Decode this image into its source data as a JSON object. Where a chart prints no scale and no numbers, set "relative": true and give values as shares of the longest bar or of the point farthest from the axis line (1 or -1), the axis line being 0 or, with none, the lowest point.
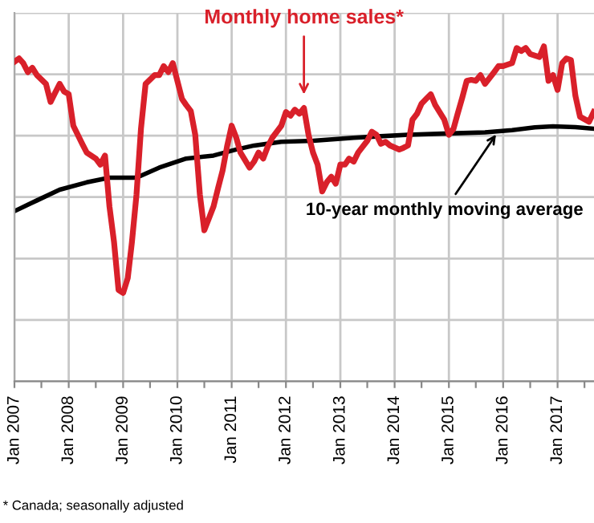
{
  "chart_data": {
    "type": "line",
    "relative": true,
    "grid": true,
    "legend": false,
    "line_style": "solid",
    "marker": "none",
    "xlim": [
      "2007-01",
      "2017-09-03"
    ],
    "xticks": [
      {
        "value": "2007-01",
        "label": "Jan 2007"
      },
      {
        "value": "2007-07",
        "label": null
      },
      {
        "value": "2008-01",
        "label": "Jan 2008"
      },
      {
        "value": "2008-07",
        "label": null
      },
      {
        "value": "2009-01",
        "label": "Jan 2009"
      },
      {
        "value": "2009-07",
        "label": null
      },
      {
        "value": "2010-01",
        "label": "Jan 2010"
      },
      {
        "value": "2010-07",
        "label": null
      },
      {
        "value": "2011-01",
        "label": "Jan 2011"
      },
      {
        "value": "2011-07",
        "label": null
      },
      {
        "value": "2012-01",
        "label": "Jan 2012"
      },
      {
        "value": "2012-07",
        "label": null
      },
      {
        "value": "2013-01",
        "label": "Jan 2013"
      },
      {
        "value": "2013-07",
        "label": null
      },
      {
        "value": "2014-01",
        "label": "Jan 2014"
      },
      {
        "value": "2014-07",
        "label": null
      },
      {
        "value": "2015-01",
        "label": "Jan 2015"
      },
      {
        "value": "2015-07",
        "label": null
      },
      {
        "value": "2016-01",
        "label": "Jan 2016"
      },
      {
        "value": "2016-07",
        "label": null
      },
      {
        "value": "2017-01",
        "label": "Jan 2017"
      },
      {
        "value": "2017-07",
        "label": null
      }
    ],
    "series": [
      {
        "color": "#d9202a",
        "x": [
          "2007-01",
          "2007-02",
          "2007-03",
          "2007-04",
          "2007-05",
          "2007-06",
          "2007-08",
          "2007-09",
          "2007-10",
          "2007-11",
          "2007-12",
          "2008-01",
          "2008-02",
          "2008-04",
          "2008-05",
          "2008-07",
          "2008-08",
          "2008-09",
          "2008-10",
          "2008-11",
          "2008-12",
          "2009-01",
          "2009-02",
          "2009-03",
          "2009-04",
          "2009-05",
          "2009-06",
          "2009-08",
          "2009-09",
          "2009-10",
          "2009-11",
          "2009-12",
          "2010-02",
          "2010-03",
          "2010-04",
          "2010-05",
          "2010-06",
          "2010-07",
          "2010-09",
          "2010-10",
          "2010-11",
          "2010-12",
          "2011-01",
          "2011-02",
          "2011-03",
          "2011-05",
          "2011-06",
          "2011-07",
          "2011-08",
          "2011-09",
          "2011-10",
          "2011-12",
          "2012-01",
          "2012-02",
          "2012-03",
          "2012-04",
          "2012-05",
          "2012-06",
          "2012-07",
          "2012-08",
          "2012-09",
          "2012-10",
          "2012-11",
          "2012-12",
          "2013-01",
          "2013-02",
          "2013-03",
          "2013-04",
          "2013-05",
          "2013-07",
          "2013-08",
          "2013-09",
          "2013-10",
          "2013-11",
          "2013-12",
          "2014-02",
          "2014-03",
          "2014-04",
          "2014-05",
          "2014-06",
          "2014-07",
          "2014-08",
          "2014-09",
          "2014-10",
          "2014-12",
          "2015-01",
          "2015-02",
          "2015-03",
          "2015-04",
          "2015-05",
          "2015-06",
          "2015-07",
          "2015-08",
          "2015-09",
          "2015-11",
          "2015-12",
          "2016-01",
          "2016-03",
          "2016-04",
          "2016-05",
          "2016-06",
          "2016-07",
          "2016-09",
          "2016-10",
          "2016-11",
          "2016-12",
          "2017-01",
          "2017-02",
          "2017-03",
          "2017-04",
          "2017-05",
          "2017-06",
          "2017-08",
          "2017-09"
        ],
        "values": [
          0.954,
          0.964,
          0.95,
          0.923,
          0.936,
          0.914,
          0.888,
          0.834,
          0.861,
          0.888,
          0.865,
          0.857,
          0.763,
          0.709,
          0.683,
          0.665,
          0.647,
          0.674,
          0.522,
          0.415,
          0.273,
          0.264,
          0.308,
          0.415,
          0.558,
          0.754,
          0.888,
          0.914,
          0.914,
          0.941,
          0.923,
          0.95,
          0.843,
          0.825,
          0.807,
          0.736,
          0.558,
          0.451,
          0.522,
          0.576,
          0.629,
          0.701,
          0.763,
          0.727,
          0.683,
          0.638,
          0.656,
          0.683,
          0.665,
          0.701,
          0.727,
          0.763,
          0.804,
          0.793,
          0.811,
          0.799,
          0.816,
          0.736,
          0.683,
          0.647,
          0.567,
          0.594,
          0.611,
          0.59,
          0.647,
          0.647,
          0.665,
          0.656,
          0.683,
          0.718,
          0.745,
          0.736,
          0.709,
          0.715,
          0.704,
          0.692,
          0.697,
          0.704,
          0.781,
          0.799,
          0.829,
          0.843,
          0.857,
          0.825,
          0.781,
          0.736,
          0.754,
          0.799,
          0.847,
          0.897,
          0.9,
          0.897,
          0.914,
          0.888,
          0.923,
          0.941,
          0.941,
          0.95,
          0.995,
          0.986,
          0.995,
          0.977,
          0.968,
          1,
          0.897,
          0.914,
          0.87,
          0.95,
          0.964,
          0.959,
          0.852,
          0.79,
          0.775,
          0.804
        ]
      },
      {
        "color": "#000000",
        "x": [
          "2007-01",
          "2007-06",
          "2007-11",
          "2008-05",
          "2008-10",
          "2009-04",
          "2009-09",
          "2010-03",
          "2010-09",
          "2011-02",
          "2011-06",
          "2011-12",
          "2012-07",
          "2013-04",
          "2013-09",
          "2014-04",
          "2015-01",
          "2015-09",
          "2016-03",
          "2016-08",
          "2016-12",
          "2017-05",
          "2017-09"
        ],
        "values": [
          0.508,
          0.54,
          0.572,
          0.594,
          0.608,
          0.608,
          0.638,
          0.665,
          0.674,
          0.692,
          0.704,
          0.715,
          0.718,
          0.727,
          0.731,
          0.736,
          0.74,
          0.743,
          0.75,
          0.758,
          0.761,
          0.759,
          0.754
        ]
      }
    ],
    "annotations": [
      {
        "text": "Monthly home sales*",
        "x": "2012-05",
        "y": 0.843
      },
      {
        "text": "10-year monthly moving average",
        "x": "2015-12",
        "y": 0.748
      },
      "* Canada; seasonally adjusted"
    ]
  }
}
